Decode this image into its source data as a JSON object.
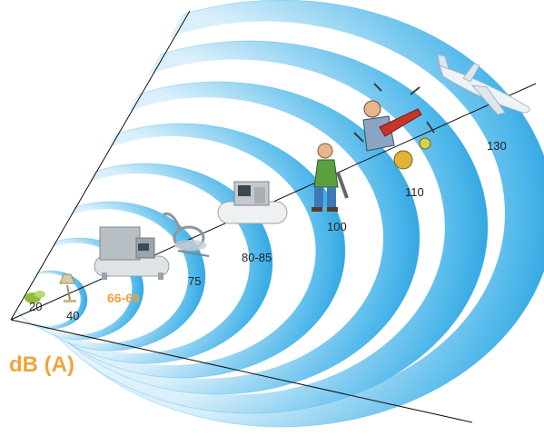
{
  "diagram": {
    "unit_label": "dB (A)",
    "accent_color": "#f2a33a",
    "wave_color": "#1fa0de",
    "levels": [
      {
        "label": "20",
        "icon": "leaf-icon",
        "highlight": false
      },
      {
        "label": "40",
        "icon": "desk-lamp-icon",
        "highlight": false
      },
      {
        "label": "66-69",
        "icon": "cabinet-compressor-icon",
        "highlight": true
      },
      {
        "label": "75",
        "icon": "vacuum-cleaner-icon",
        "highlight": false
      },
      {
        "label": "80-85",
        "icon": "tank-compressor-icon",
        "highlight": false
      },
      {
        "label": "100",
        "icon": "jackhammer-worker-icon",
        "highlight": false
      },
      {
        "label": "110",
        "icon": "rock-band-icon",
        "highlight": false
      },
      {
        "label": "130",
        "icon": "airplane-icon",
        "highlight": false
      }
    ]
  }
}
